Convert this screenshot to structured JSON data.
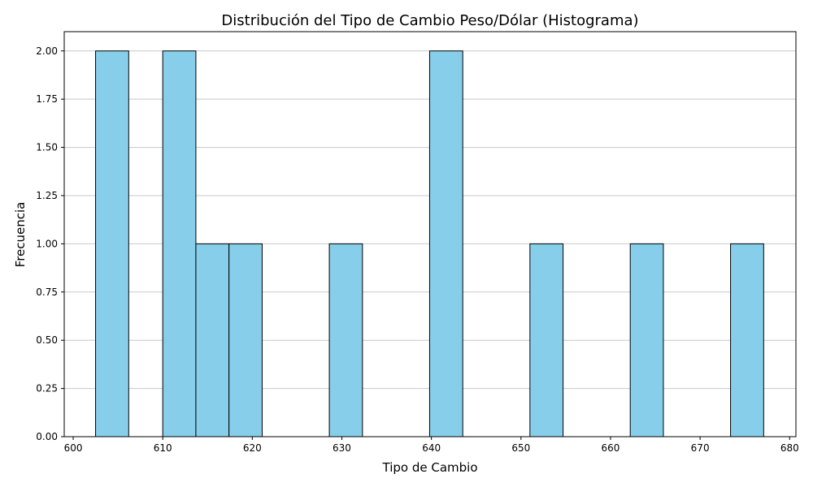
{
  "chart_data": {
    "type": "bar",
    "title": "Distribución del Tipo de Cambio Peso/Dólar (Histograma)",
    "xlabel": "Tipo de Cambio",
    "ylabel": "Frecuencia",
    "xlim": [
      599,
      680.7
    ],
    "ylim": [
      0,
      2.1
    ],
    "xticks": [
      "600",
      "610",
      "620",
      "630",
      "640",
      "650",
      "660",
      "670",
      "680"
    ],
    "yticks": [
      "0.00",
      "0.25",
      "0.50",
      "0.75",
      "1.00",
      "1.25",
      "1.50",
      "1.75",
      "2.00"
    ],
    "grid": "y-axis horizontal lines",
    "bins": [
      {
        "start": 602.5,
        "end": 606.2,
        "count": 2
      },
      {
        "start": 610.0,
        "end": 613.7,
        "count": 2
      },
      {
        "start": 613.7,
        "end": 617.4,
        "count": 1
      },
      {
        "start": 617.4,
        "end": 621.1,
        "count": 1
      },
      {
        "start": 628.6,
        "end": 632.3,
        "count": 1
      },
      {
        "start": 639.8,
        "end": 643.5,
        "count": 2
      },
      {
        "start": 651.0,
        "end": 654.7,
        "count": 1
      },
      {
        "start": 662.2,
        "end": 665.9,
        "count": 1
      },
      {
        "start": 673.4,
        "end": 677.1,
        "count": 1
      }
    ],
    "colors": {
      "bar_fill": "#87ceeb",
      "bar_edge": "#000000",
      "grid": "#c8c8c8"
    }
  }
}
